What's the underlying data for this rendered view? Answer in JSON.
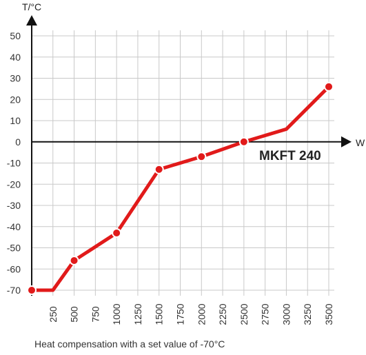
{
  "chart_data": {
    "type": "line",
    "ylabel": "T/°C",
    "xlabel": "W",
    "x_ticks": [
      250,
      500,
      750,
      1000,
      1250,
      1500,
      1750,
      2000,
      2250,
      2500,
      2750,
      3000,
      3250,
      3500
    ],
    "y_ticks": [
      50,
      40,
      30,
      20,
      10,
      0,
      -10,
      -20,
      -30,
      -40,
      -50,
      -60,
      -70
    ],
    "xlim": [
      0,
      3500
    ],
    "ylim": [
      -70,
      50
    ],
    "grid": true,
    "series": [
      {
        "name": "MKFT 240",
        "color": "#e11a1a",
        "points": [
          {
            "x": 0,
            "y": -70,
            "marker": true
          },
          {
            "x": 250,
            "y": -70,
            "marker": false
          },
          {
            "x": 500,
            "y": -56,
            "marker": true
          },
          {
            "x": 1000,
            "y": -43,
            "marker": true
          },
          {
            "x": 1500,
            "y": -13,
            "marker": true
          },
          {
            "x": 2000,
            "y": -7,
            "marker": true
          },
          {
            "x": 2500,
            "y": 0,
            "marker": true
          },
          {
            "x": 3000,
            "y": 6,
            "marker": false
          },
          {
            "x": 3500,
            "y": 26,
            "marker": true
          }
        ]
      }
    ]
  },
  "caption": "Heat compensation with a set value of -70°C",
  "colors": {
    "grid": "#c8c8c8",
    "axis": "#111111",
    "series": "#e11a1a"
  }
}
